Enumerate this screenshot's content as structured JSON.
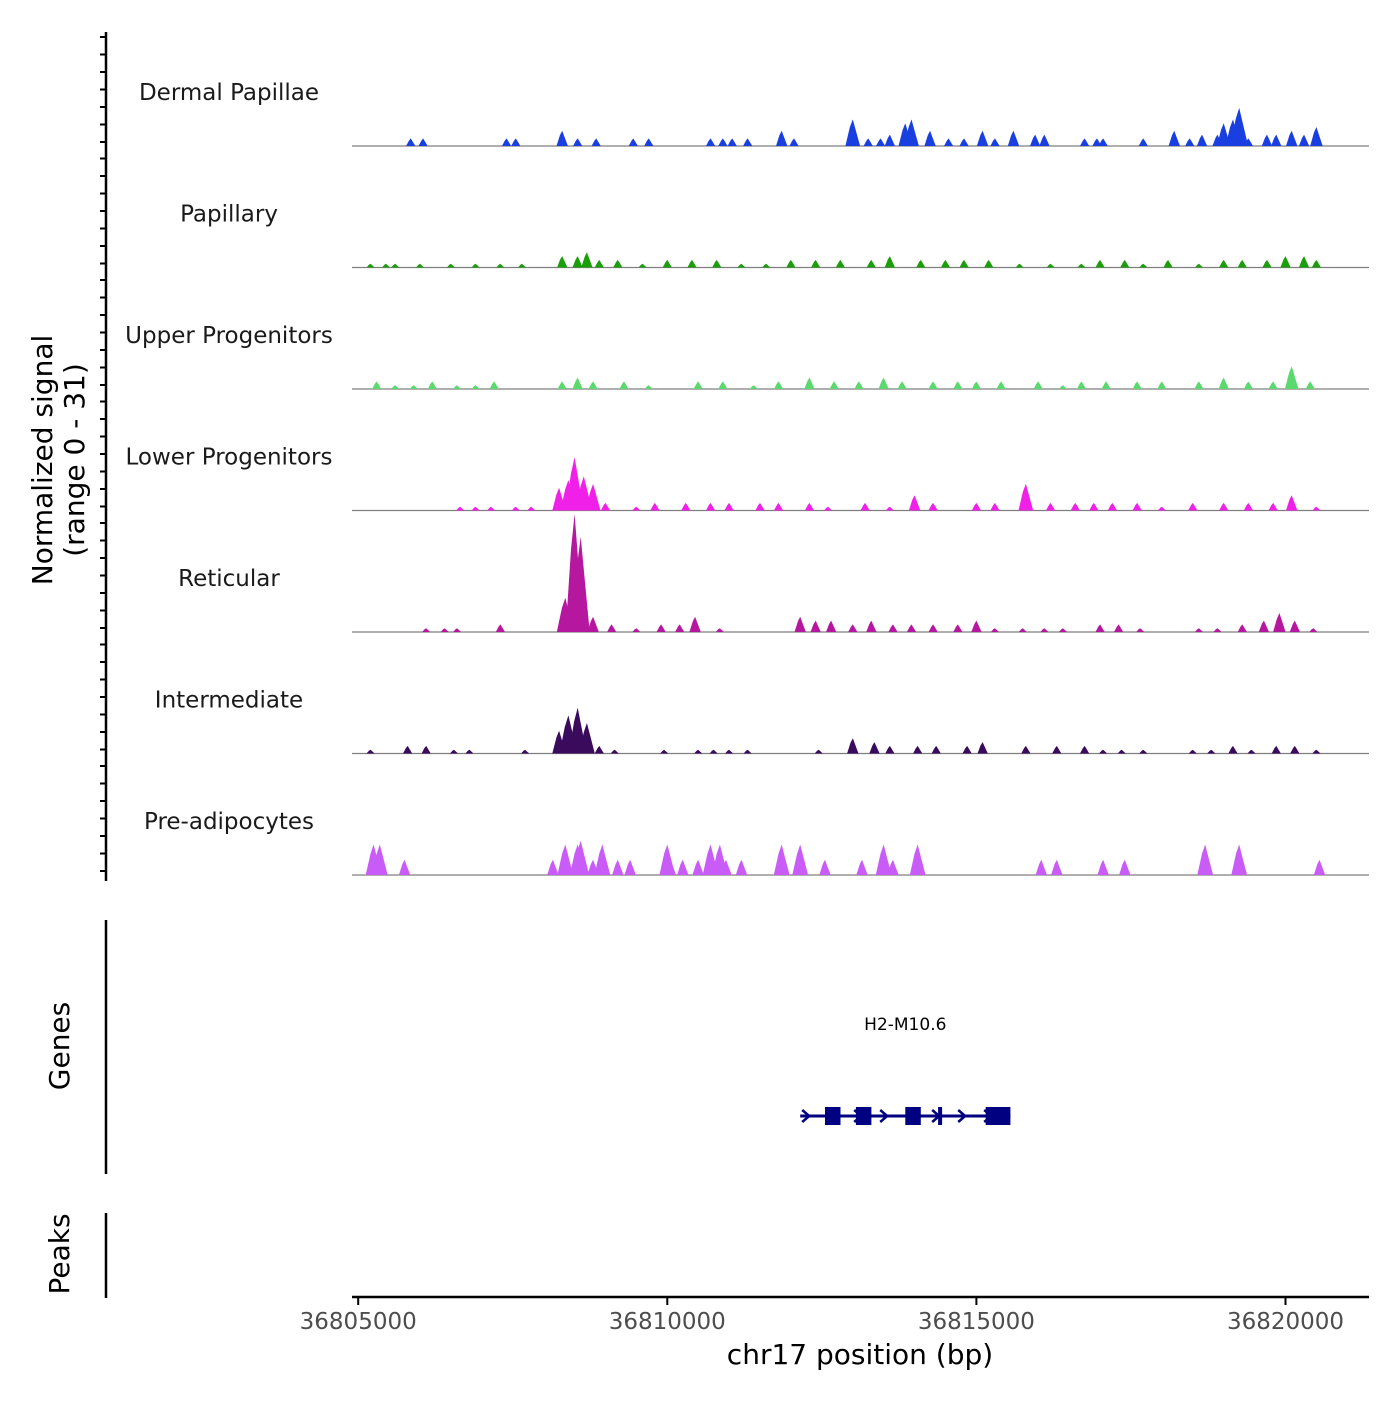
{
  "chart_data": {
    "type": "area",
    "title": "",
    "xlabel": "chr17 position (bp)",
    "ylabel": [
      "Normalized signal",
      "(range 0 - 31)"
    ],
    "xlim": [
      36804900,
      36821350
    ],
    "ylim": [
      0,
      31
    ],
    "x_ticks": [
      36805000,
      36810000,
      36815000,
      36820000
    ],
    "x_tick_labels": [
      "36805000",
      "36810000",
      "36815000",
      "36820000"
    ],
    "series": [
      {
        "name": "Dermal Papillae",
        "color": "#1a3fe0",
        "peaks": [
          [
            36805850,
            2
          ],
          [
            36806050,
            2
          ],
          [
            36807400,
            2
          ],
          [
            36807550,
            2
          ],
          [
            36808300,
            4
          ],
          [
            36808550,
            2
          ],
          [
            36808850,
            2
          ],
          [
            36809450,
            2
          ],
          [
            36809700,
            2
          ],
          [
            36810700,
            2
          ],
          [
            36810900,
            2
          ],
          [
            36811050,
            2
          ],
          [
            36811300,
            2
          ],
          [
            36811850,
            4
          ],
          [
            36812050,
            2
          ],
          [
            36813000,
            7
          ],
          [
            36813250,
            2
          ],
          [
            36813450,
            2
          ],
          [
            36813600,
            3
          ],
          [
            36813850,
            6
          ],
          [
            36813950,
            7
          ],
          [
            36814250,
            4
          ],
          [
            36814550,
            2
          ],
          [
            36814800,
            2
          ],
          [
            36815100,
            4
          ],
          [
            36815300,
            2
          ],
          [
            36815600,
            4
          ],
          [
            36815950,
            3
          ],
          [
            36816100,
            3
          ],
          [
            36816750,
            2
          ],
          [
            36816950,
            2
          ],
          [
            36817050,
            2
          ],
          [
            36817700,
            2
          ],
          [
            36818200,
            4
          ],
          [
            36818450,
            2
          ],
          [
            36818650,
            3
          ],
          [
            36818900,
            3
          ],
          [
            36819000,
            6
          ],
          [
            36819150,
            7
          ],
          [
            36819250,
            10
          ],
          [
            36819400,
            2
          ],
          [
            36819700,
            3
          ],
          [
            36819850,
            3
          ],
          [
            36820100,
            4
          ],
          [
            36820300,
            3
          ],
          [
            36820500,
            5
          ]
        ]
      },
      {
        "name": "Papillary",
        "color": "#1a9e0a",
        "peaks": [
          [
            36805200,
            1
          ],
          [
            36805450,
            1
          ],
          [
            36805600,
            1
          ],
          [
            36806000,
            1
          ],
          [
            36806500,
            1
          ],
          [
            36806900,
            1
          ],
          [
            36807300,
            1
          ],
          [
            36807650,
            1
          ],
          [
            36808300,
            3
          ],
          [
            36808550,
            3
          ],
          [
            36808700,
            4
          ],
          [
            36808900,
            2
          ],
          [
            36809200,
            2
          ],
          [
            36809600,
            1
          ],
          [
            36810000,
            2
          ],
          [
            36810400,
            2
          ],
          [
            36810800,
            2
          ],
          [
            36811200,
            1
          ],
          [
            36811600,
            1
          ],
          [
            36812000,
            2
          ],
          [
            36812400,
            2
          ],
          [
            36812800,
            2
          ],
          [
            36813300,
            2
          ],
          [
            36813600,
            3
          ],
          [
            36814100,
            2
          ],
          [
            36814500,
            2
          ],
          [
            36814800,
            2
          ],
          [
            36815200,
            2
          ],
          [
            36815700,
            1
          ],
          [
            36816200,
            1
          ],
          [
            36816700,
            1
          ],
          [
            36817000,
            2
          ],
          [
            36817400,
            2
          ],
          [
            36817700,
            1
          ],
          [
            36818100,
            2
          ],
          [
            36818600,
            1
          ],
          [
            36819000,
            2
          ],
          [
            36819300,
            2
          ],
          [
            36819700,
            2
          ],
          [
            36820000,
            3
          ],
          [
            36820300,
            3
          ],
          [
            36820500,
            2
          ]
        ]
      },
      {
        "name": "Upper Progenitors",
        "color": "#5cd96e",
        "peaks": [
          [
            36805300,
            2
          ],
          [
            36805600,
            1
          ],
          [
            36805900,
            1
          ],
          [
            36806200,
            2
          ],
          [
            36806600,
            1
          ],
          [
            36806900,
            1
          ],
          [
            36807200,
            2
          ],
          [
            36808300,
            2
          ],
          [
            36808550,
            3
          ],
          [
            36808800,
            2
          ],
          [
            36809300,
            2
          ],
          [
            36809700,
            1
          ],
          [
            36810500,
            2
          ],
          [
            36810900,
            2
          ],
          [
            36811400,
            1
          ],
          [
            36811800,
            2
          ],
          [
            36812300,
            3
          ],
          [
            36812700,
            2
          ],
          [
            36813100,
            2
          ],
          [
            36813500,
            3
          ],
          [
            36813800,
            2
          ],
          [
            36814300,
            2
          ],
          [
            36814700,
            2
          ],
          [
            36815000,
            2
          ],
          [
            36815400,
            2
          ],
          [
            36816000,
            2
          ],
          [
            36816400,
            1
          ],
          [
            36816700,
            2
          ],
          [
            36817100,
            2
          ],
          [
            36817600,
            2
          ],
          [
            36818000,
            2
          ],
          [
            36818600,
            2
          ],
          [
            36819000,
            3
          ],
          [
            36819400,
            2
          ],
          [
            36819800,
            2
          ],
          [
            36820100,
            6
          ],
          [
            36820400,
            2
          ]
        ]
      },
      {
        "name": "Lower Progenitors",
        "color": "#f020e8",
        "peaks": [
          [
            36806650,
            1
          ],
          [
            36806900,
            1
          ],
          [
            36807150,
            1
          ],
          [
            36807550,
            1
          ],
          [
            36807800,
            1
          ],
          [
            36808250,
            6
          ],
          [
            36808400,
            8
          ],
          [
            36808500,
            14
          ],
          [
            36808650,
            9
          ],
          [
            36808800,
            7
          ],
          [
            36809000,
            2
          ],
          [
            36809500,
            1
          ],
          [
            36809800,
            2
          ],
          [
            36810300,
            2
          ],
          [
            36810700,
            2
          ],
          [
            36811000,
            2
          ],
          [
            36811500,
            2
          ],
          [
            36811800,
            2
          ],
          [
            36812300,
            2
          ],
          [
            36812600,
            1
          ],
          [
            36813200,
            2
          ],
          [
            36813600,
            1
          ],
          [
            36814000,
            4
          ],
          [
            36814300,
            2
          ],
          [
            36815000,
            2
          ],
          [
            36815300,
            2
          ],
          [
            36815800,
            7
          ],
          [
            36816200,
            2
          ],
          [
            36816600,
            2
          ],
          [
            36816900,
            2
          ],
          [
            36817200,
            2
          ],
          [
            36817600,
            2
          ],
          [
            36818000,
            1
          ],
          [
            36818500,
            2
          ],
          [
            36819000,
            2
          ],
          [
            36819400,
            2
          ],
          [
            36819800,
            2
          ],
          [
            36820100,
            4
          ],
          [
            36820500,
            1
          ]
        ]
      },
      {
        "name": "Reticular",
        "color": "#b5189f",
        "peaks": [
          [
            36806100,
            1
          ],
          [
            36806400,
            1
          ],
          [
            36806600,
            1
          ],
          [
            36807300,
            2
          ],
          [
            36808350,
            9
          ],
          [
            36808500,
            31
          ],
          [
            36808600,
            25
          ],
          [
            36808800,
            4
          ],
          [
            36809100,
            2
          ],
          [
            36809500,
            1
          ],
          [
            36809900,
            2
          ],
          [
            36810200,
            2
          ],
          [
            36810450,
            4
          ],
          [
            36810850,
            1
          ],
          [
            36812150,
            4
          ],
          [
            36812400,
            3
          ],
          [
            36812650,
            3
          ],
          [
            36813000,
            2
          ],
          [
            36813300,
            3
          ],
          [
            36813650,
            2
          ],
          [
            36813950,
            2
          ],
          [
            36814300,
            2
          ],
          [
            36814700,
            2
          ],
          [
            36815000,
            3
          ],
          [
            36815300,
            1
          ],
          [
            36815750,
            1
          ],
          [
            36816100,
            1
          ],
          [
            36816400,
            1
          ],
          [
            36817000,
            2
          ],
          [
            36817300,
            2
          ],
          [
            36817650,
            1
          ],
          [
            36818600,
            1
          ],
          [
            36818900,
            1
          ],
          [
            36819300,
            2
          ],
          [
            36819650,
            3
          ],
          [
            36819900,
            5
          ],
          [
            36820150,
            3
          ],
          [
            36820450,
            1
          ]
        ]
      },
      {
        "name": "Intermediate",
        "color": "#3a0a5c",
        "peaks": [
          [
            36805200,
            1
          ],
          [
            36805800,
            2
          ],
          [
            36806100,
            2
          ],
          [
            36806550,
            1
          ],
          [
            36806800,
            1
          ],
          [
            36807700,
            1
          ],
          [
            36808250,
            6
          ],
          [
            36808400,
            10
          ],
          [
            36808550,
            12
          ],
          [
            36808700,
            8
          ],
          [
            36808900,
            2
          ],
          [
            36809150,
            1
          ],
          [
            36809950,
            1
          ],
          [
            36810500,
            1
          ],
          [
            36810750,
            1
          ],
          [
            36811000,
            1
          ],
          [
            36811300,
            1
          ],
          [
            36812450,
            1
          ],
          [
            36813000,
            4
          ],
          [
            36813350,
            3
          ],
          [
            36813600,
            2
          ],
          [
            36814050,
            2
          ],
          [
            36814350,
            2
          ],
          [
            36814850,
            2
          ],
          [
            36815100,
            3
          ],
          [
            36815800,
            2
          ],
          [
            36816300,
            2
          ],
          [
            36816750,
            2
          ],
          [
            36817050,
            1
          ],
          [
            36817350,
            1
          ],
          [
            36817700,
            1
          ],
          [
            36818500,
            1
          ],
          [
            36818800,
            1
          ],
          [
            36819150,
            2
          ],
          [
            36819450,
            1
          ],
          [
            36819850,
            2
          ],
          [
            36820150,
            2
          ],
          [
            36820500,
            1
          ]
        ]
      },
      {
        "name": "Pre-adipocytes",
        "color": "#c95cf7",
        "peaks": [
          [
            36805250,
            8
          ],
          [
            36805350,
            8
          ],
          [
            36805750,
            4
          ],
          [
            36808150,
            4
          ],
          [
            36808350,
            8
          ],
          [
            36808500,
            4
          ],
          [
            36808550,
            8
          ],
          [
            36808600,
            9
          ],
          [
            36808800,
            4
          ],
          [
            36808950,
            8
          ],
          [
            36809200,
            4
          ],
          [
            36809400,
            4
          ],
          [
            36810000,
            8
          ],
          [
            36810050,
            4
          ],
          [
            36810250,
            4
          ],
          [
            36810500,
            4
          ],
          [
            36810700,
            8
          ],
          [
            36810850,
            8
          ],
          [
            36810950,
            4
          ],
          [
            36811200,
            4
          ],
          [
            36811850,
            8
          ],
          [
            36812150,
            8
          ],
          [
            36812550,
            4
          ],
          [
            36813150,
            4
          ],
          [
            36813500,
            8
          ],
          [
            36813650,
            4
          ],
          [
            36814050,
            8
          ],
          [
            36816050,
            4
          ],
          [
            36816300,
            4
          ],
          [
            36817050,
            4
          ],
          [
            36817400,
            4
          ],
          [
            36818700,
            8
          ],
          [
            36819250,
            8
          ],
          [
            36820550,
            4
          ]
        ]
      }
    ],
    "genes": [
      {
        "name": "H2-M10.6",
        "strand": "+",
        "start": 36812150,
        "end": 36815550,
        "exons": [
          [
            36812550,
            36812800
          ],
          [
            36813050,
            36813300
          ],
          [
            36813850,
            36814100
          ],
          [
            36814380,
            36814440
          ],
          [
            36815150,
            36815550
          ]
        ]
      }
    ],
    "track_titles": {
      "genes": "Genes",
      "peaks": "Peaks"
    }
  }
}
